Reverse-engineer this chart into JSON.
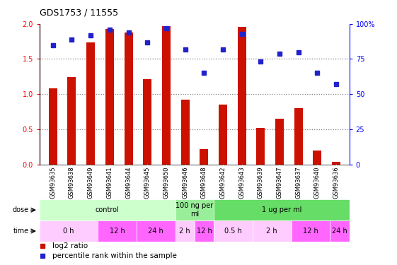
{
  "title": "GDS1753 / 11555",
  "samples": [
    "GSM93635",
    "GSM93638",
    "GSM93649",
    "GSM93641",
    "GSM93644",
    "GSM93645",
    "GSM93650",
    "GSM93646",
    "GSM93648",
    "GSM93642",
    "GSM93643",
    "GSM93639",
    "GSM93647",
    "GSM93637",
    "GSM93640",
    "GSM93636"
  ],
  "log2_ratio": [
    1.08,
    1.24,
    1.74,
    1.93,
    1.88,
    1.21,
    1.97,
    0.92,
    0.22,
    0.85,
    1.96,
    0.52,
    0.65,
    0.8,
    0.2,
    0.04
  ],
  "percentile": [
    85,
    89,
    92,
    96,
    94,
    87,
    97,
    82,
    65,
    82,
    93,
    73,
    79,
    80,
    65,
    57
  ],
  "dose_groups": [
    {
      "label": "control",
      "start": 0,
      "end": 7,
      "color": "#ccffcc"
    },
    {
      "label": "100 ng per\nml",
      "start": 7,
      "end": 9,
      "color": "#99ee99"
    },
    {
      "label": "1 ug per ml",
      "start": 9,
      "end": 16,
      "color": "#66dd66"
    }
  ],
  "time_groups": [
    {
      "label": "0 h",
      "start": 0,
      "end": 3,
      "color": "#ffccff"
    },
    {
      "label": "12 h",
      "start": 3,
      "end": 5,
      "color": "#ff66ff"
    },
    {
      "label": "24 h",
      "start": 5,
      "end": 7,
      "color": "#ff66ff"
    },
    {
      "label": "2 h",
      "start": 7,
      "end": 8,
      "color": "#ffccff"
    },
    {
      "label": "12 h",
      "start": 8,
      "end": 9,
      "color": "#ff66ff"
    },
    {
      "label": "0.5 h",
      "start": 9,
      "end": 11,
      "color": "#ffccff"
    },
    {
      "label": "2 h",
      "start": 11,
      "end": 13,
      "color": "#ffccff"
    },
    {
      "label": "12 h",
      "start": 13,
      "end": 15,
      "color": "#ff66ff"
    },
    {
      "label": "24 h",
      "start": 15,
      "end": 16,
      "color": "#ff66ff"
    }
  ],
  "bar_color": "#cc1100",
  "dot_color": "#2222cc",
  "ylim_left": [
    0,
    2
  ],
  "ylim_right": [
    0,
    100
  ],
  "yticks_left": [
    0,
    0.5,
    1.0,
    1.5,
    2.0
  ],
  "yticks_right": [
    0,
    25,
    50,
    75,
    100
  ],
  "xtick_bg": "#d8d8d8"
}
